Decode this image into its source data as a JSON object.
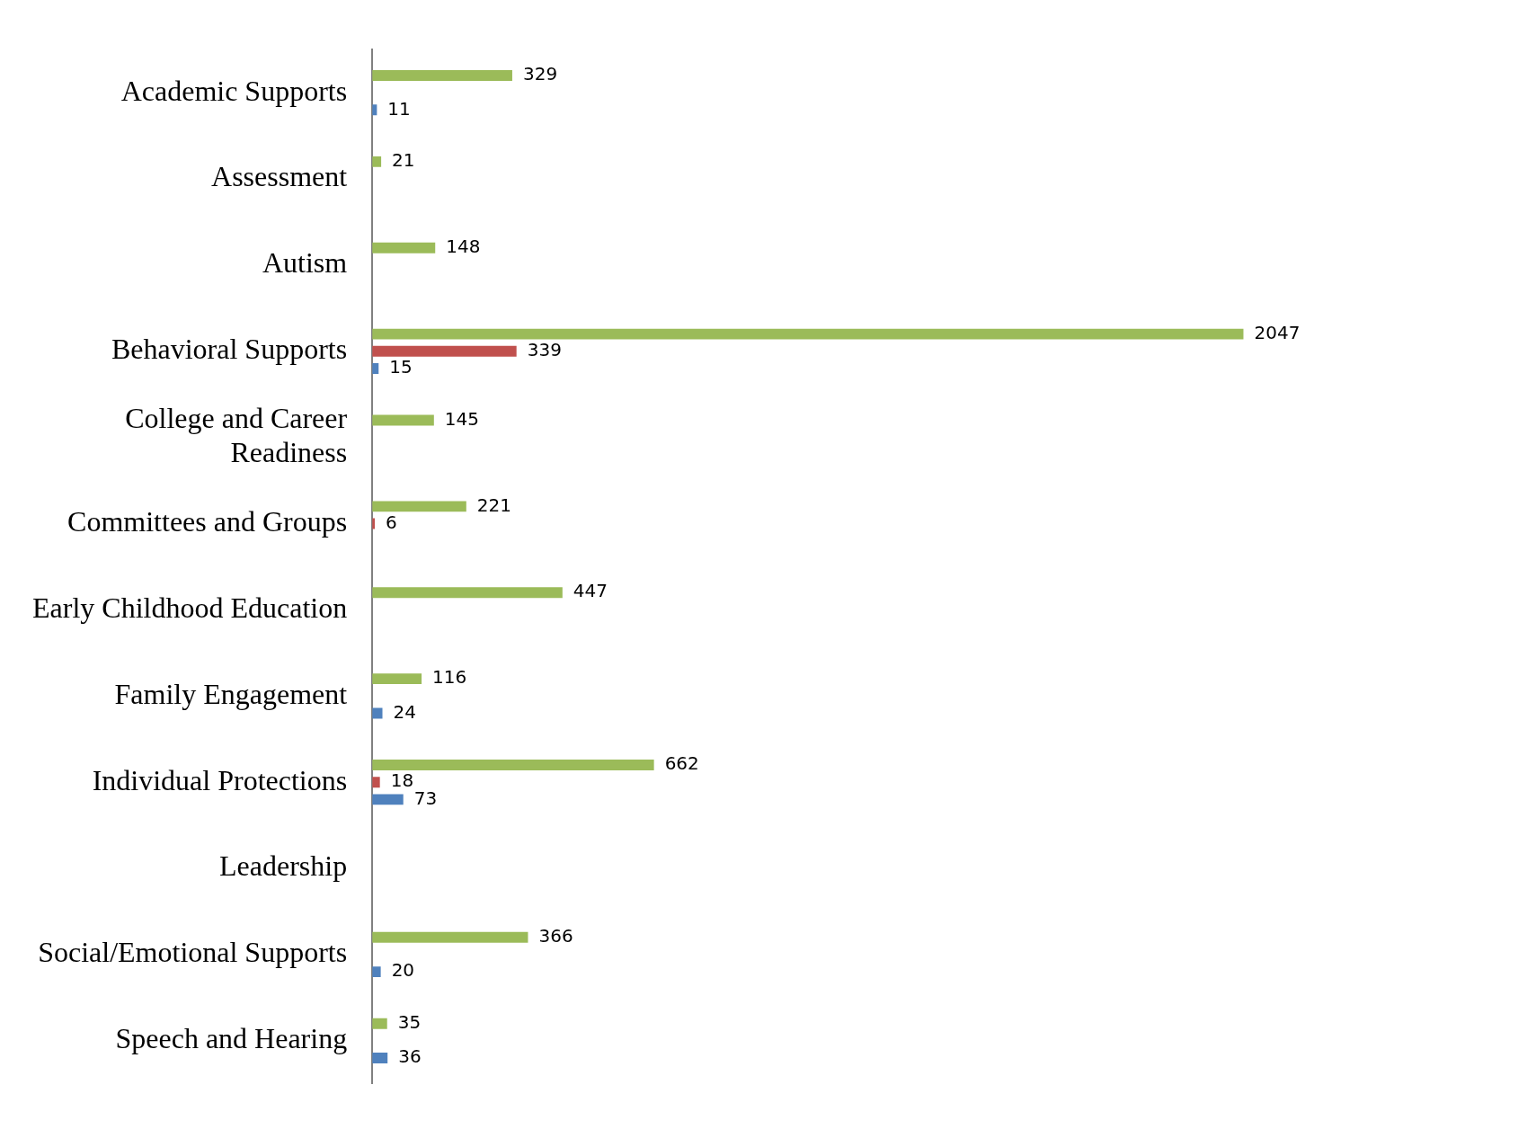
{
  "chart_data": {
    "type": "bar",
    "orientation": "horizontal",
    "tick_labels": "y",
    "data_labels": true,
    "categories": [
      "Academic Supports",
      "Assessment",
      "Autism",
      "Behavioral Supports",
      "College and Career Readiness",
      "Committees and Groups",
      "Early Childhood Education",
      "Family Engagement",
      "Individual Protections",
      "Leadership",
      "Social/Emotional Supports",
      "Speech and Hearing"
    ],
    "series": [
      {
        "color": "#9bbb59",
        "values": [
          329,
          21,
          148,
          2047,
          145,
          221,
          447,
          116,
          662,
          null,
          366,
          35
        ]
      },
      {
        "color": "#c0504d",
        "values": [
          null,
          null,
          null,
          339,
          null,
          6,
          null,
          null,
          18,
          null,
          null,
          null
        ]
      },
      {
        "color": "#4f81bd",
        "values": [
          11,
          null,
          null,
          15,
          null,
          null,
          null,
          24,
          73,
          null,
          20,
          36
        ]
      }
    ]
  }
}
